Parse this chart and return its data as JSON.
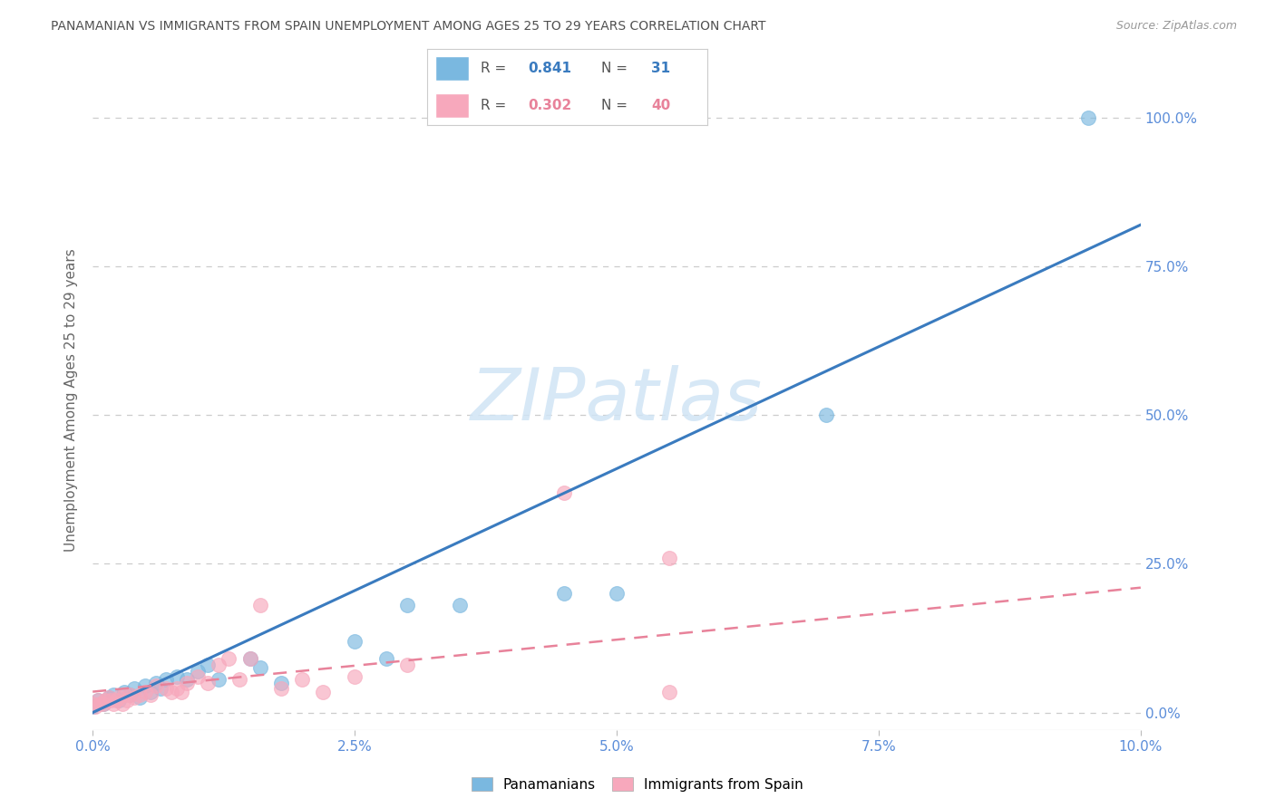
{
  "title": "PANAMANIAN VS IMMIGRANTS FROM SPAIN UNEMPLOYMENT AMONG AGES 25 TO 29 YEARS CORRELATION CHART",
  "source": "Source: ZipAtlas.com",
  "ylabel": "Unemployment Among Ages 25 to 29 years",
  "xlim": [
    0.0,
    10.0
  ],
  "ylim": [
    -3.0,
    108.0
  ],
  "xlabel_vals": [
    0.0,
    2.5,
    5.0,
    7.5,
    10.0
  ],
  "ylabel_vals": [
    0.0,
    25.0,
    50.0,
    75.0,
    100.0
  ],
  "legend_R1": "R =",
  "legend_V1": "0.841",
  "legend_N1": "N =",
  "legend_C1": " 31",
  "legend_R2": "R =",
  "legend_V2": "0.302",
  "legend_N2": "N =",
  "legend_C2": "40",
  "pan_color": "#7ab8e0",
  "pan_edge": "#7ab8e0",
  "spain_color": "#f7a8bc",
  "spain_edge": "#f7a8bc",
  "pan_trend_color": "#3a7bbf",
  "spain_trend_color": "#e8829a",
  "watermark_color": "#d0e4f5",
  "grid_color": "#cccccc",
  "background_color": "#ffffff",
  "title_color": "#505050",
  "tick_color": "#5b8dd9",
  "pan_scatter_x": [
    0.0,
    0.05,
    0.1,
    0.15,
    0.2,
    0.25,
    0.3,
    0.35,
    0.4,
    0.45,
    0.5,
    0.55,
    0.6,
    0.65,
    0.7,
    0.8,
    0.9,
    1.0,
    1.1,
    1.2,
    1.5,
    1.6,
    1.8,
    2.5,
    2.8,
    3.0,
    3.5,
    4.5,
    5.0,
    7.0,
    9.5
  ],
  "pan_scatter_y": [
    1.0,
    2.0,
    1.5,
    2.5,
    3.0,
    2.0,
    3.5,
    3.0,
    4.0,
    2.5,
    4.5,
    3.5,
    5.0,
    4.0,
    5.5,
    6.0,
    5.5,
    7.0,
    8.0,
    5.5,
    9.0,
    7.5,
    5.0,
    12.0,
    9.0,
    18.0,
    18.0,
    20.0,
    20.0,
    50.0,
    100.0
  ],
  "spain_scatter_x": [
    0.0,
    0.02,
    0.05,
    0.07,
    0.1,
    0.12,
    0.15,
    0.17,
    0.2,
    0.22,
    0.25,
    0.28,
    0.3,
    0.33,
    0.35,
    0.4,
    0.45,
    0.5,
    0.55,
    0.6,
    0.7,
    0.75,
    0.8,
    0.85,
    0.9,
    1.0,
    1.1,
    1.2,
    1.3,
    1.4,
    1.5,
    1.6,
    1.8,
    2.0,
    2.2,
    2.5,
    3.0,
    4.5,
    5.5,
    5.5
  ],
  "spain_scatter_y": [
    1.5,
    1.0,
    2.0,
    1.5,
    1.5,
    2.0,
    2.5,
    2.0,
    1.5,
    2.0,
    2.5,
    1.5,
    3.0,
    2.0,
    3.0,
    2.5,
    3.0,
    3.5,
    3.0,
    4.5,
    4.0,
    3.5,
    4.0,
    3.5,
    5.0,
    6.0,
    5.0,
    8.0,
    9.0,
    5.5,
    9.0,
    18.0,
    4.0,
    5.5,
    3.5,
    6.0,
    8.0,
    37.0,
    26.0,
    3.5
  ],
  "pan_trendline_x": [
    0.0,
    10.0
  ],
  "pan_trendline_y": [
    0.0,
    82.0
  ],
  "spain_trendline_x": [
    0.0,
    10.0
  ],
  "spain_trendline_y": [
    3.5,
    21.0
  ]
}
